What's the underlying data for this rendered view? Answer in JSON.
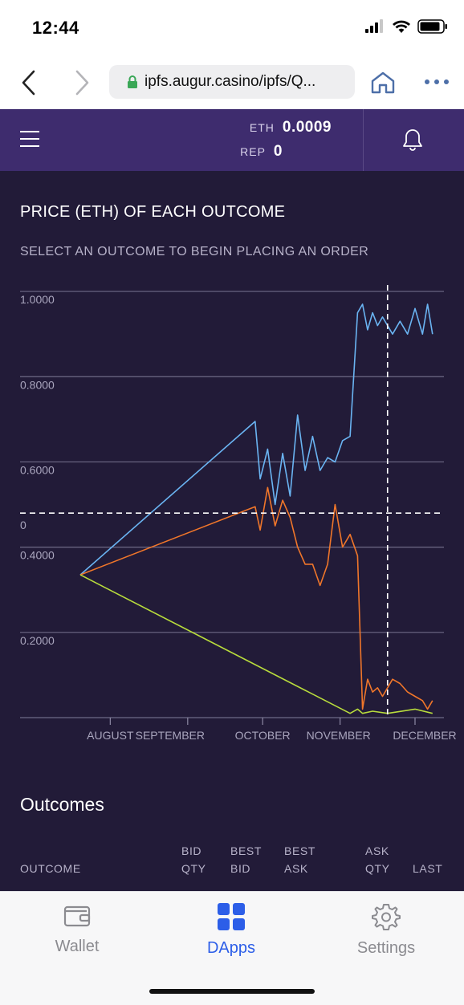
{
  "status_bar": {
    "time": "12:44"
  },
  "browser": {
    "url": "ipfs.augur.casino/ipfs/Q..."
  },
  "header": {
    "eth_label": "ETH",
    "eth_value": "0.0009",
    "rep_label": "REP",
    "rep_value": "0"
  },
  "chart": {
    "title": "PRICE (ETH) OF EACH OUTCOME",
    "subtitle": "SELECT AN OUTCOME TO BEGIN PLACING AN ORDER"
  },
  "chart_data": {
    "type": "line",
    "y_tick_labels": [
      "1.0000",
      "0.8000",
      "0.6000",
      "0.4000",
      "0.2000"
    ],
    "crosshair_label": "0",
    "x_tick_labels": [
      "AUGUST",
      "SEPTEMBER",
      "OCTOBER",
      "NOVEMBER",
      "DECEMBER"
    ],
    "ylim": [
      0,
      1
    ],
    "grid": true,
    "colors": {
      "outcome_1": "#6ab4f2",
      "outcome_2": "#f0762a",
      "outcome_3": "#b8dc3c"
    },
    "series": [
      {
        "color": "#6ab4f2",
        "x": [
          "Jul 20",
          "Sep 28",
          "Sep 30",
          "Oct 3",
          "Oct 6",
          "Oct 9",
          "Oct 12",
          "Oct 15",
          "Oct 18",
          "Oct 21",
          "Oct 24",
          "Oct 27",
          "Oct 30",
          "Nov 2",
          "Nov 5",
          "Nov 8",
          "Nov 10",
          "Nov 12",
          "Nov 14",
          "Nov 16",
          "Nov 18",
          "Nov 20",
          "Nov 22",
          "Nov 25",
          "Nov 28",
          "Dec 1",
          "Dec 4",
          "Dec 6",
          "Dec 8"
        ],
        "values": [
          0.335,
          0.695,
          0.56,
          0.63,
          0.5,
          0.62,
          0.52,
          0.71,
          0.58,
          0.66,
          0.58,
          0.61,
          0.6,
          0.65,
          0.66,
          0.95,
          0.97,
          0.91,
          0.95,
          0.92,
          0.94,
          0.92,
          0.9,
          0.93,
          0.9,
          0.96,
          0.9,
          0.97,
          0.9
        ]
      },
      {
        "color": "#f0762a",
        "x": [
          "Jul 20",
          "Sep 28",
          "Sep 30",
          "Oct 3",
          "Oct 6",
          "Oct 9",
          "Oct 12",
          "Oct 15",
          "Oct 18",
          "Oct 21",
          "Oct 24",
          "Oct 27",
          "Oct 30",
          "Nov 2",
          "Nov 5",
          "Nov 8",
          "Nov 10",
          "Nov 12",
          "Nov 14",
          "Nov 16",
          "Nov 18",
          "Nov 20",
          "Nov 22",
          "Nov 25",
          "Nov 28",
          "Dec 1",
          "Dec 4",
          "Dec 6",
          "Dec 8"
        ],
        "values": [
          0.335,
          0.495,
          0.44,
          0.54,
          0.45,
          0.51,
          0.47,
          0.4,
          0.36,
          0.36,
          0.31,
          0.36,
          0.5,
          0.4,
          0.43,
          0.38,
          0.02,
          0.09,
          0.06,
          0.07,
          0.05,
          0.07,
          0.09,
          0.08,
          0.06,
          0.05,
          0.04,
          0.02,
          0.04
        ]
      },
      {
        "color": "#b8dc3c",
        "x": [
          "Jul 20",
          "Nov 5",
          "Nov 8",
          "Nov 10",
          "Nov 14",
          "Nov 20",
          "Dec 1",
          "Dec 8"
        ],
        "values": [
          0.335,
          0.01,
          0.02,
          0.01,
          0.015,
          0.01,
          0.02,
          0.01
        ]
      }
    ]
  },
  "outcomes": {
    "title": "Outcomes",
    "columns": {
      "outcome": "OUTCOME",
      "bid_qty": [
        "BID",
        "QTY"
      ],
      "best_bid": [
        "BEST",
        "BID"
      ],
      "best_ask": [
        "BEST",
        "ASK"
      ],
      "ask_qty": [
        "ASK",
        "QTY"
      ],
      "last": "LAST"
    }
  },
  "tabs": [
    {
      "label": "Wallet",
      "icon": "wallet-icon",
      "active": false
    },
    {
      "label": "DApps",
      "icon": "dapps-grid-icon",
      "active": true
    },
    {
      "label": "Settings",
      "icon": "gear-icon",
      "active": false
    }
  ],
  "theme": {
    "header_bg": "#3e2c6e",
    "content_bg": "#221b38",
    "active_tab": "#2c5ee8",
    "inactive_tab": "#8b8b90"
  }
}
